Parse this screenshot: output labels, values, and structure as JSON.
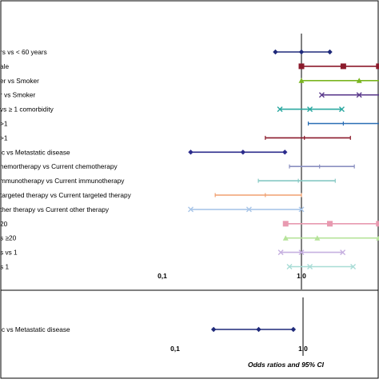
{
  "chart_data": {
    "type": "forest",
    "xscale": "log",
    "reference_line": 1.0,
    "panels": [
      {
        "tick_labels": [
          "0,1",
          "1,0"
        ],
        "tick_values": [
          0.1,
          1.0
        ],
        "rows": [
          {
            "label": "rs vs < 60 years",
            "color": "#1f2a7a",
            "marker": "diamond",
            "or": 1.0,
            "ci_low": 0.65,
            "ci_high": 1.6
          },
          {
            "label": "ale",
            "color": "#8b1a2b",
            "marker": "square",
            "or": 2.0,
            "ci_low": 1.0,
            "ci_high": 3.6
          },
          {
            "label": "er vs Smoker",
            "color": "#7ab520",
            "marker": "triangle",
            "or": 2.6,
            "ci_low": 1.0,
            "ci_high": 7.5
          },
          {
            "label": "r vs Smoker",
            "color": "#5b3a8c",
            "marker": "x",
            "or": 2.6,
            "ci_low": 1.4,
            "ci_high": 7.5
          },
          {
            "label": "vs ≥ 1 comorbidity",
            "color": "#2aa8a0",
            "marker": "x",
            "or": 1.15,
            "ci_low": 0.7,
            "ci_high": 1.95
          },
          {
            "label": ">1",
            "color": "#2a6fb5",
            "marker": "dash",
            "or": 2.0,
            "ci_low": 1.12,
            "ci_high": 7.5
          },
          {
            "label": ">1",
            "color": "#8b1a2b",
            "marker": "dash",
            "or": 1.05,
            "ci_low": 0.55,
            "ci_high": 2.25
          },
          {
            "label": "ic vs Metastatic disease",
            "color": "#2b2b8c",
            "marker": "diamond",
            "or": 0.38,
            "ci_low": 0.16,
            "ci_high": 0.76
          },
          {
            "label": "hemortherapy vs Current chemotherapy",
            "color": "#8a8fc0",
            "marker": "dash",
            "or": 1.35,
            "ci_low": 0.82,
            "ci_high": 2.4
          },
          {
            "label": "mmunotherapy vs Current immunotherapy",
            "color": "#86c9c4",
            "marker": "dash",
            "or": 0.95,
            "ci_low": 0.49,
            "ci_high": 1.75
          },
          {
            "label": "targeted therapy vs Current targeted therapy",
            "color": "#f0a070",
            "marker": "dash",
            "or": 0.55,
            "ci_low": 0.24,
            "ci_high": 1.0
          },
          {
            "label": "ther therapy vs Current other therapy",
            "color": "#a9c6e8",
            "marker": "x",
            "or": 0.42,
            "ci_low": 0.16,
            "ci_high": 1.0
          },
          {
            "label": "20",
            "color": "#e89ab0",
            "marker": "square",
            "or": 1.6,
            "ci_low": 0.77,
            "ci_high": 3.6
          },
          {
            "label": "s ≥20",
            "color": "#b6e39a",
            "marker": "triangle",
            "or": 1.3,
            "ci_low": 0.77,
            "ci_high": 3.6
          },
          {
            "label": "s vs 1",
            "color": "#c6b0e0",
            "marker": "x",
            "or": 1.0,
            "ci_low": 0.71,
            "ci_high": 1.98
          },
          {
            "label": "s 1",
            "color": "#a8dcd6",
            "marker": "x",
            "or": 1.15,
            "ci_low": 0.82,
            "ci_high": 2.35
          }
        ]
      },
      {
        "tick_labels": [
          "0,1",
          "1,0"
        ],
        "tick_values": [
          0.1,
          1.0
        ],
        "xlabel": "Odds ratios and 95% CI",
        "rows": [
          {
            "label": "ic vs Metastatic disease",
            "color": "#1f2a7a",
            "marker": "diamond",
            "or": 0.45,
            "ci_low": 0.2,
            "ci_high": 0.84
          }
        ]
      }
    ]
  }
}
